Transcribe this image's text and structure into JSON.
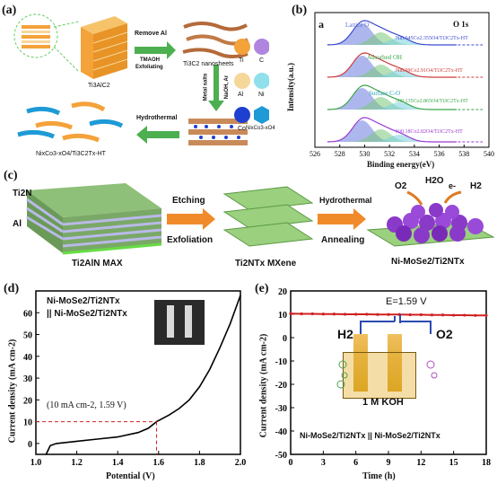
{
  "panel_a": {
    "label": "(a)",
    "step1_l1": "Remove Al",
    "step1_l2": "TMAOH",
    "step1_l3": "Exfoliating",
    "ti3alc2": "Ti3AlC2",
    "nanosheets": "Ti3C2 nanosheets",
    "metal_salts": "Metal salts",
    "naoh_ar": "NaOH, Ar",
    "hydrothermal": "Hydrothermal",
    "product": "NixCo3-xO4/Ti3C2Tx-HT",
    "legend": [
      "Ti",
      "C",
      "Al",
      "Ni",
      "Co",
      "NixCo3-xO4"
    ],
    "colors": {
      "ti": "#f4a23a",
      "c": "#b085e0",
      "al": "#f6d79a",
      "ni": "#8fe0ea",
      "co": "#1f3fd0",
      "nico": "#1e9ad6"
    }
  },
  "panel_b": {
    "label": "(b)",
    "inner": "a",
    "title": "O 1s",
    "xlabel": "Binding energy(eV)",
    "ylabel": "Intensity(a.u.)",
    "annot1": "Lattice O",
    "annot2": "Adsorbed OH",
    "annot3": "Surface C-O",
    "samples": [
      "Ni0.645Co2.355O4/Ti3C2Tx-HT",
      "Ni0.09Co2.91O4/Ti3C2Tx-HT",
      "Ni0.135Co2.865O4/Ti3C2Tx-HT",
      "Ni0.18Co2.82O4/Ti3C2Tx-HT"
    ],
    "xticks": [
      "526",
      "528",
      "530",
      "532",
      "534",
      "536",
      "538",
      "540"
    ]
  },
  "panel_c": {
    "label": "(c)",
    "ti2n": "Ti2N",
    "al": "Al",
    "max": "Ti2AlN MAX",
    "etching": "Etching",
    "exfoliation": "Exfoliation",
    "mxene": "Ti2NTx MXene",
    "hydrothermal": "Hydrothermal",
    "annealing": "Annealing",
    "product": "Ni-MoSe2/Ti2NTx",
    "o2": "O2",
    "h2o": "H2O",
    "h2": "H2",
    "e": "e-"
  },
  "panel_d": {
    "label": "(d)",
    "legend_l1": "Ni-MoSe2/Ti2NTx",
    "legend_l2": "|| Ni-MoSe2/Ti2NTx",
    "annotation": "(10 mA cm-2, 1.59 V)",
    "xlabel": "Potential (V)",
    "ylabel": "Current density (mA cm-2)",
    "xticks": [
      "1.0",
      "1.2",
      "1.4",
      "1.6",
      "1.8",
      "2.0"
    ],
    "yticks": [
      "0",
      "10",
      "20",
      "30",
      "40",
      "50",
      "60"
    ]
  },
  "panel_e": {
    "label": "(e)",
    "e_label": "E=1.59 V",
    "h2": "H2",
    "o2": "O2",
    "koh": "1 M KOH",
    "cell_label": "Ni-MoSe2/Ti2NTx || Ni-MoSe2/Ti2NTx",
    "xlabel": "Time (h)",
    "ylabel": "Current density (mA cm-2)",
    "xticks": [
      "0",
      "3",
      "6",
      "9",
      "12",
      "15",
      "18"
    ],
    "yticks": [
      "-50",
      "-40",
      "-30",
      "-20",
      "-10",
      "0",
      "10",
      "20"
    ]
  },
  "chart_data": [
    {
      "type": "line",
      "title": "",
      "xlabel": "Potential (V)",
      "ylabel": "Current density (mA cm-2)",
      "xlim": [
        1.0,
        2.0
      ],
      "ylim": [
        -5,
        70
      ],
      "series": [
        {
          "name": "Ni-MoSe2/Ti2NTx || Ni-MoSe2/Ti2NTx",
          "x": [
            1.05,
            1.07,
            1.1,
            1.2,
            1.3,
            1.4,
            1.5,
            1.55,
            1.59,
            1.65,
            1.7,
            1.75,
            1.8,
            1.85,
            1.9,
            1.95,
            2.0
          ],
          "y": [
            -5,
            -1,
            0,
            1,
            2,
            3,
            5,
            7,
            10,
            13,
            16,
            20,
            26,
            34,
            44,
            55,
            68
          ]
        }
      ]
    },
    {
      "type": "line",
      "title": "",
      "xlabel": "Time (h)",
      "ylabel": "Current density (mA cm-2)",
      "xlim": [
        0,
        18
      ],
      "ylim": [
        -50,
        20
      ],
      "series": [
        {
          "name": "E=1.59 V",
          "x": [
            0,
            1,
            2,
            3,
            4,
            5,
            6,
            7,
            8,
            9,
            10,
            11,
            12,
            13,
            14,
            15,
            16,
            17,
            18
          ],
          "y": [
            10.3,
            10.2,
            10.2,
            10.1,
            10.1,
            10.0,
            10.0,
            10.0,
            9.9,
            9.9,
            9.9,
            9.8,
            9.8,
            9.7,
            9.7,
            9.6,
            9.6,
            9.5,
            9.5
          ]
        }
      ]
    },
    {
      "type": "area",
      "title": "O 1s",
      "xlabel": "Binding energy(eV)",
      "ylabel": "Intensity(a.u.)",
      "xlim": [
        526,
        540
      ],
      "series": [
        {
          "name": "Ni0.645Co2.355O4/Ti3C2Tx-HT",
          "peaks_eV": [
            529.8,
            531.3,
            532.8
          ]
        },
        {
          "name": "Ni0.09Co2.91O4/Ti3C2Tx-HT",
          "peaks_eV": [
            529.8,
            531.3,
            532.8
          ]
        },
        {
          "name": "Ni0.135Co2.865O4/Ti3C2Tx-HT",
          "peaks_eV": [
            529.8,
            531.3,
            532.8
          ]
        },
        {
          "name": "Ni0.18Co2.82O4/Ti3C2Tx-HT",
          "peaks_eV": [
            529.8,
            531.3,
            532.8
          ]
        }
      ]
    }
  ]
}
